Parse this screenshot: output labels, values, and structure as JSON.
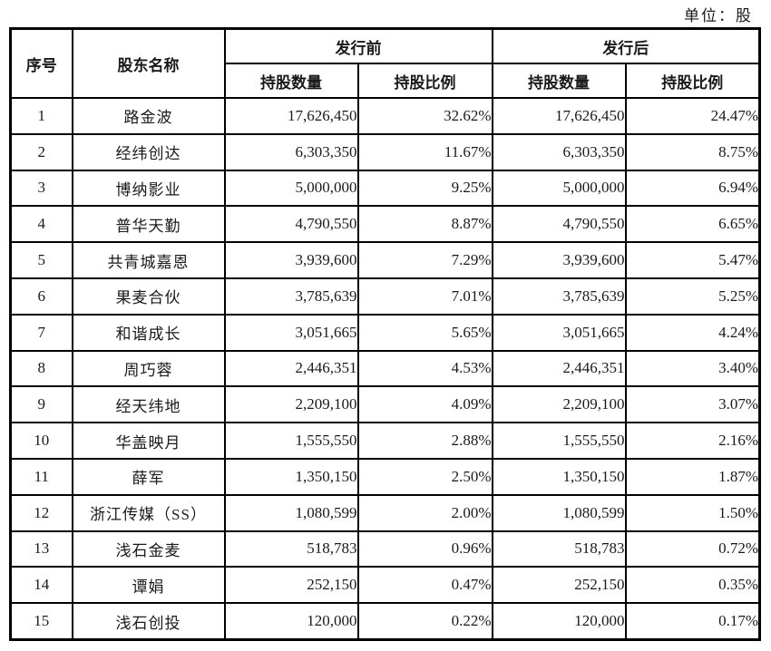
{
  "unit_label": "单位：股",
  "table": {
    "headers": {
      "index": "序号",
      "shareholder": "股东名称",
      "pre_issue": "发行前",
      "post_issue": "发行后",
      "shares_held": "持股数量",
      "share_ratio": "持股比例"
    },
    "rows": [
      {
        "index": "1",
        "name": "路金波",
        "pre_shares": "17,626,450",
        "pre_ratio": "32.62%",
        "post_shares": "17,626,450",
        "post_ratio": "24.47%"
      },
      {
        "index": "2",
        "name": "经纬创达",
        "pre_shares": "6,303,350",
        "pre_ratio": "11.67%",
        "post_shares": "6,303,350",
        "post_ratio": "8.75%"
      },
      {
        "index": "3",
        "name": "博纳影业",
        "pre_shares": "5,000,000",
        "pre_ratio": "9.25%",
        "post_shares": "5,000,000",
        "post_ratio": "6.94%"
      },
      {
        "index": "4",
        "name": "普华天勤",
        "pre_shares": "4,790,550",
        "pre_ratio": "8.87%",
        "post_shares": "4,790,550",
        "post_ratio": "6.65%"
      },
      {
        "index": "5",
        "name": "共青城嘉恩",
        "pre_shares": "3,939,600",
        "pre_ratio": "7.29%",
        "post_shares": "3,939,600",
        "post_ratio": "5.47%"
      },
      {
        "index": "6",
        "name": "果麦合伙",
        "pre_shares": "3,785,639",
        "pre_ratio": "7.01%",
        "post_shares": "3,785,639",
        "post_ratio": "5.25%"
      },
      {
        "index": "7",
        "name": "和谐成长",
        "pre_shares": "3,051,665",
        "pre_ratio": "5.65%",
        "post_shares": "3,051,665",
        "post_ratio": "4.24%"
      },
      {
        "index": "8",
        "name": "周巧蓉",
        "pre_shares": "2,446,351",
        "pre_ratio": "4.53%",
        "post_shares": "2,446,351",
        "post_ratio": "3.40%"
      },
      {
        "index": "9",
        "name": "经天纬地",
        "pre_shares": "2,209,100",
        "pre_ratio": "4.09%",
        "post_shares": "2,209,100",
        "post_ratio": "3.07%"
      },
      {
        "index": "10",
        "name": "华盖映月",
        "pre_shares": "1,555,550",
        "pre_ratio": "2.88%",
        "post_shares": "1,555,550",
        "post_ratio": "2.16%"
      },
      {
        "index": "11",
        "name": "薛军",
        "pre_shares": "1,350,150",
        "pre_ratio": "2.50%",
        "post_shares": "1,350,150",
        "post_ratio": "1.87%"
      },
      {
        "index": "12",
        "name": "浙江传媒（SS）",
        "pre_shares": "1,080,599",
        "pre_ratio": "2.00%",
        "post_shares": "1,080,599",
        "post_ratio": "1.50%"
      },
      {
        "index": "13",
        "name": "浅石金麦",
        "pre_shares": "518,783",
        "pre_ratio": "0.96%",
        "post_shares": "518,783",
        "post_ratio": "0.72%"
      },
      {
        "index": "14",
        "name": "谭娟",
        "pre_shares": "252,150",
        "pre_ratio": "0.47%",
        "post_shares": "252,150",
        "post_ratio": "0.35%"
      },
      {
        "index": "15",
        "name": "浅石创投",
        "pre_shares": "120,000",
        "pre_ratio": "0.22%",
        "post_shares": "120,000",
        "post_ratio": "0.17%"
      }
    ]
  },
  "colors": {
    "border": "#000000",
    "text": "#1a1a1a",
    "background": "#ffffff"
  }
}
